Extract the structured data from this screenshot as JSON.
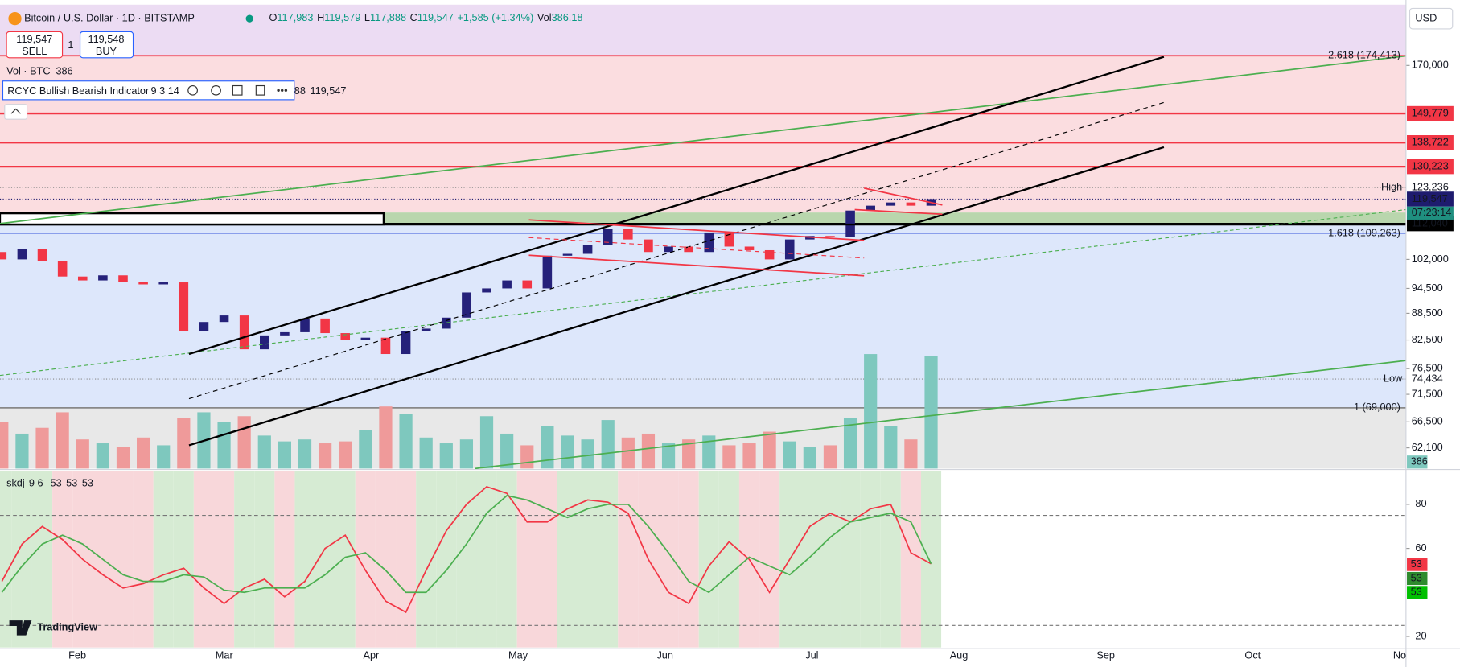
{
  "header": {
    "symbol": "Bitcoin / U.S. Dollar · 1D · BITSTAMP",
    "ohlc": [
      {
        "label": "O",
        "value": "117,983"
      },
      {
        "label": "H",
        "value": "119,579"
      },
      {
        "label": "L",
        "value": "117,888"
      },
      {
        "label": "C",
        "value": "119,547"
      }
    ],
    "change": "+1,585 (+1.34%)",
    "vol_label": "Vol",
    "vol_value": "386.18"
  },
  "trade": {
    "sell_price": "119,547",
    "sell": "SELL",
    "qty": "1",
    "buy_price": "119,548",
    "buy": "BUY"
  },
  "volume_legend": {
    "label": "Vol · BTC",
    "value": "386"
  },
  "indicator": {
    "name": "RCYC Bullish Bearish Indicator",
    "params": "9 3 14",
    "prefix": "88",
    "value": "119,547"
  },
  "currency": "USD",
  "logo": "TradingView",
  "chart_data": [
    {
      "type": "candlestick",
      "log_scale": true,
      "xticks": [
        "Feb",
        "Mar",
        "Apr",
        "May",
        "Jun",
        "Jul",
        "Aug",
        "Sep",
        "Oct",
        "No"
      ],
      "open": [
        104000,
        102000,
        104800,
        101500,
        97500,
        96500,
        97800,
        96200,
        95500,
        96000,
        84500,
        86500,
        88000,
        80500,
        83500,
        84200,
        87300,
        84000,
        82500,
        83000,
        79500,
        84500,
        85000,
        87500,
        93500,
        94500,
        96500,
        94500,
        103000,
        103500,
        106000,
        110500,
        107500,
        104000,
        105500,
        104000,
        109500,
        105500,
        104500,
        102000,
        107500,
        108500,
        108200,
        116000,
        117500,
        118500,
        117500
      ],
      "high": {
        "label": "High",
        "value": 123236,
        "value_label": "123,236"
      },
      "low": {
        "label": "Low",
        "value": 74434,
        "value_label": "74,434"
      },
      "close": [
        102000,
        104800,
        101500,
        97500,
        96500,
        97800,
        96200,
        95500,
        96000,
        84500,
        86500,
        88000,
        80500,
        83500,
        84200,
        87300,
        84000,
        82500,
        83000,
        79500,
        84500,
        85000,
        87500,
        93500,
        94500,
        96500,
        94500,
        103000,
        103500,
        106000,
        110500,
        107500,
        104000,
        105500,
        104000,
        109500,
        105500,
        104500,
        102000,
        107500,
        108500,
        108200,
        116000,
        117500,
        118500,
        117500,
        119547
      ],
      "volume": [
        2400,
        1800,
        2100,
        2900,
        1500,
        1300,
        1100,
        1600,
        1200,
        2600,
        2900,
        2400,
        2700,
        1700,
        1400,
        1500,
        1300,
        1400,
        2000,
        3200,
        2800,
        1600,
        1300,
        1500,
        2700,
        1800,
        1200,
        2200,
        1700,
        1500,
        2500,
        1600,
        1800,
        1300,
        1500,
        1700,
        1200,
        1300,
        1900,
        1400,
        1100,
        1200,
        2600,
        5900,
        2200,
        1500,
        5800
      ],
      "volume_lim": [
        0,
        6000
      ],
      "up_color": "#25217a",
      "down_color": "#f23645",
      "volume_up_color": "#7ec8be",
      "volume_down_color": "#ef9a9a",
      "ylim": [
        58800,
        199500
      ],
      "yticks": [
        {
          "value": 170000,
          "label": "170,000"
        },
        {
          "value": 102000,
          "label": "102,000"
        },
        {
          "value": 94500,
          "label": "94,500"
        },
        {
          "value": 88500,
          "label": "88,500"
        },
        {
          "value": 82500,
          "label": "82,500"
        },
        {
          "value": 76500,
          "label": "76,500"
        },
        {
          "value": 71500,
          "label": "71,500"
        },
        {
          "value": 66500,
          "label": "66,500"
        },
        {
          "value": 62100,
          "label": "62,100"
        }
      ],
      "zones": [
        {
          "from": 174413,
          "to": 199500,
          "color": "#ecdcf3"
        },
        {
          "from": 115400,
          "to": 174413,
          "color": "#fbdde0"
        },
        {
          "from": 112040,
          "to": 115400,
          "color": "#b9d6ad"
        },
        {
          "from": 69000,
          "to": 112040,
          "color": "#dde7fb"
        },
        {
          "from": 58800,
          "to": 69000,
          "color": "#e8e8e8"
        }
      ],
      "fib_levels": [
        {
          "value": 174413,
          "label": "2.618 (174,413)",
          "color": "#f23645"
        },
        {
          "value": 109263,
          "label": "1.618 (109,263)",
          "color": "#6f86e6"
        },
        {
          "value": 69000,
          "label": "1 (69,000)",
          "color": "#888888"
        }
      ],
      "price_lines": [
        {
          "value": 149779,
          "label": "149,779",
          "color": "#f23645"
        },
        {
          "value": 138722,
          "label": "138,722",
          "color": "#f23645"
        },
        {
          "value": 130223,
          "label": "130,223",
          "color": "#f23645"
        },
        {
          "value": 112040,
          "label": "112,040",
          "color": "#000000"
        }
      ],
      "last_price": {
        "value": 119547,
        "label": "119,547",
        "countdown": "07:23:14",
        "color": "#1e1b6e",
        "countdown_color": "#1f8f7f"
      }
    },
    {
      "type": "line",
      "title": "skdj",
      "params": "9 6",
      "header_values": [
        {
          "label": "53",
          "color": "#f23645"
        },
        {
          "label": "53",
          "color": "#2e8b2e"
        },
        {
          "label": "53",
          "color": "#00c000"
        }
      ],
      "series": [
        {
          "color": "#f23645",
          "values": [
            45,
            62,
            70,
            64,
            55,
            48,
            42,
            44,
            48,
            51,
            42,
            35,
            42,
            46,
            38,
            45,
            60,
            66,
            50,
            36,
            31,
            50,
            68,
            80,
            88,
            85,
            72,
            72,
            78,
            82,
            81,
            76,
            55,
            40,
            35,
            52,
            63,
            55,
            40,
            55,
            70,
            76,
            72,
            78,
            80,
            58,
            53
          ]
        },
        {
          "color": "#4caf50",
          "values": [
            40,
            52,
            62,
            66,
            62,
            55,
            48,
            45,
            45,
            48,
            47,
            41,
            40,
            42,
            42,
            42,
            48,
            56,
            58,
            50,
            40,
            40,
            50,
            62,
            76,
            84,
            82,
            78,
            74,
            78,
            80,
            80,
            70,
            58,
            45,
            40,
            48,
            56,
            52,
            48,
            56,
            65,
            72,
            74,
            76,
            72,
            53
          ]
        }
      ],
      "ylim": [
        15,
        95
      ],
      "yticks": [
        20,
        60,
        80
      ],
      "levels": [
        75,
        25
      ],
      "band_up_color": "#d6ebd3",
      "band_down_color": "#f8d7da"
    }
  ]
}
